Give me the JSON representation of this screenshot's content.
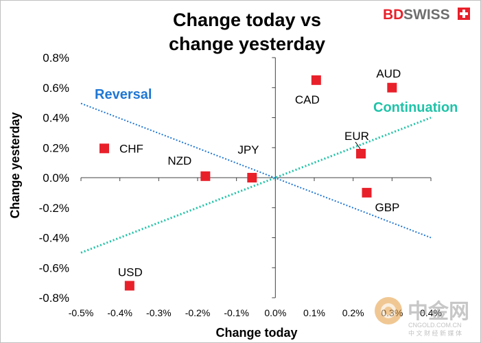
{
  "title": {
    "line1": "Change today vs",
    "line2": "change yesterday"
  },
  "logo": {
    "text_bd": "BD",
    "text_swiss": "SWISS",
    "icon": "swiss-cross-icon"
  },
  "watermark": {
    "text_main": "中金网",
    "text_url": "CNGOLD.COM.CN",
    "text_sub": "中 文 财 经 新 媒 体",
    "icon": "cngold-coin-logo"
  },
  "colors": {
    "points": "#e8202a",
    "reversal": "#1f77d4",
    "continuation": "#1fc3a8",
    "axis": "#404040"
  },
  "chart_data": {
    "type": "scatter",
    "xlabel": "Change today",
    "ylabel": "Change yesterday",
    "xlim": [
      -0.5,
      0.4
    ],
    "ylim": [
      -0.8,
      0.8
    ],
    "x_ticks": [
      "-0.5%",
      "-0.4%",
      "-0.3%",
      "-0.2%",
      "-0.1%",
      "0.0%",
      "0.1%",
      "0.2%",
      "0.3%",
      "0.4%"
    ],
    "y_ticks": [
      "0.8%",
      "0.6%",
      "0.4%",
      "0.2%",
      "0.0%",
      "-0.2%",
      "-0.4%",
      "-0.6%",
      "-0.8%"
    ],
    "points": [
      {
        "label": "CAD",
        "x": 0.105,
        "y": 0.65
      },
      {
        "label": "AUD",
        "x": 0.3,
        "y": 0.6
      },
      {
        "label": "CHF",
        "x": -0.44,
        "y": 0.195
      },
      {
        "label": "EUR",
        "x": 0.22,
        "y": 0.16
      },
      {
        "label": "NZD",
        "x": -0.18,
        "y": 0.01
      },
      {
        "label": "JPY",
        "x": -0.06,
        "y": 0.0
      },
      {
        "label": "GBP",
        "x": 0.235,
        "y": -0.1
      },
      {
        "label": "USD",
        "x": -0.375,
        "y": -0.72
      }
    ],
    "lines": [
      {
        "label": "Reversal",
        "x": [
          -0.5,
          0.4
        ],
        "y": [
          0.495,
          -0.4
        ]
      },
      {
        "label": "Continuation",
        "x": [
          -0.5,
          0.4
        ],
        "y": [
          -0.5,
          0.4
        ]
      }
    ]
  }
}
